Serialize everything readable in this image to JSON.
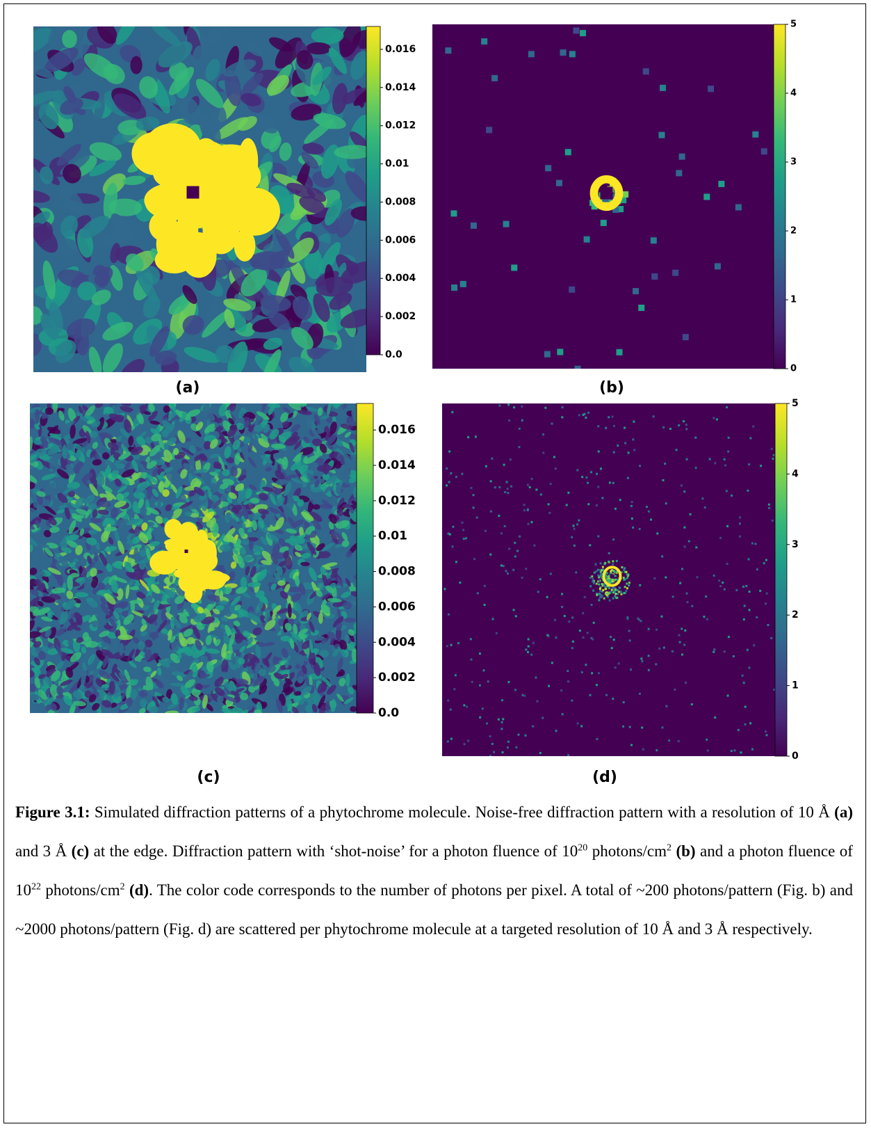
{
  "panels": [
    {
      "label": "(a)",
      "colorbar": {
        "lim": [
          0,
          0.0172
        ],
        "ticks": [
          {
            "value": 0,
            "label": "0.0"
          },
          0.002,
          0.004,
          0.006,
          0.008,
          0.01,
          0.012,
          0.014,
          0.016
        ]
      }
    },
    {
      "label": "(b)",
      "colorbar": {
        "lim": [
          0,
          5
        ],
        "ticks": [
          0,
          1,
          2,
          3,
          4,
          5
        ]
      }
    },
    {
      "label": "(c)",
      "colorbar": {
        "lim": [
          0,
          0.0175
        ],
        "ticks": [
          {
            "value": 0,
            "label": "0.0"
          },
          0.002,
          0.004,
          0.006,
          0.008,
          0.01,
          0.012,
          0.014,
          0.016
        ]
      }
    },
    {
      "label": "(d)",
      "colorbar": {
        "lim": [
          0,
          5
        ],
        "ticks": [
          0,
          1,
          2,
          3,
          4,
          5
        ]
      }
    }
  ],
  "caption": {
    "runs": [
      "Figure 3.1:",
      " Simulated diffraction patterns of a phytochrome molecule. Noise-free diffraction pattern with a resolution of 10 Å ",
      "(a)",
      " and 3 Å ",
      "(c)",
      " at the edge. Diffraction pattern with ‘shot-noise’ for a photon fluence of 10",
      "20",
      " photons/cm",
      "2",
      " (b)",
      " and a photon fluence of 10",
      "22",
      " photons/cm",
      "2",
      " (d)",
      ". The color code corresponds to the number of photons per pixel. A total of ~200 photons/pattern (Fig. b) and ~2000 photons/pattern (Fig. d) are scattered per phytochrome molecule at a targeted resolution of 10 Å and 3 Å respectively."
    ]
  }
}
